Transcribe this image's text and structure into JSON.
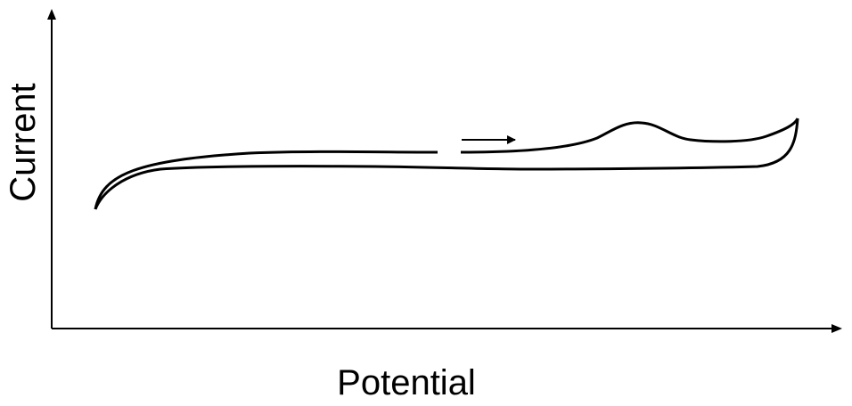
{
  "axes": {
    "x_label": "Potential",
    "y_label": "Current"
  },
  "colors": {
    "line": "#000000",
    "background": "#ffffff"
  },
  "icons": {
    "scan_direction": "right-arrow-icon"
  }
}
